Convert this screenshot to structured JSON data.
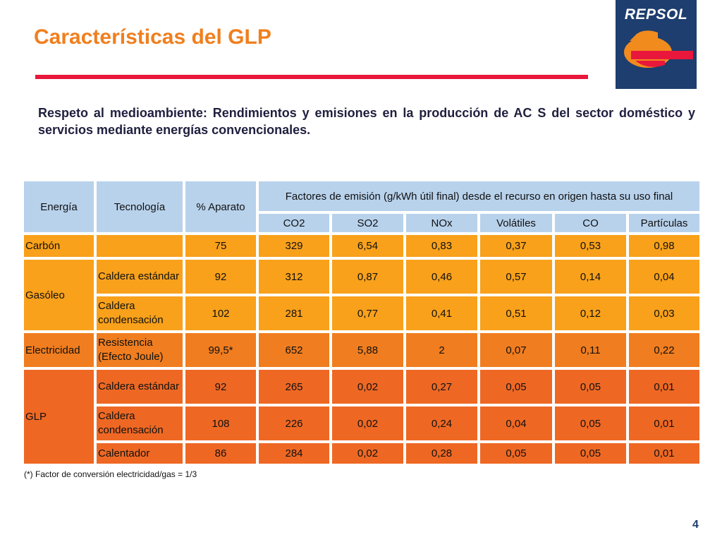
{
  "slide": {
    "title": "Características del GLP",
    "subtitle": "Respeto al medioambiente: Rendimientos y emisiones en la producción de AC S del sector doméstico y servicios mediante energías convencionales.",
    "footnote": "(*) Factor de conversión electricidad/gas = 1/3",
    "page_number": "4"
  },
  "logo": {
    "text": "REPSOL",
    "colors": {
      "background": "#1d3e6e",
      "orange": "#f28b1e",
      "red": "#e8173b"
    }
  },
  "colors": {
    "title": "#f07f1e",
    "rule": "#e8173b",
    "header": "#b8d2ec",
    "carbon": "#f9a11b",
    "gasoleo": "#f9a11b",
    "electricidad": "#f07d1f",
    "glp": "#ee6824"
  },
  "table": {
    "headers": {
      "energia": "Energía",
      "tecnologia": "Tecnología",
      "aparato": "% Aparato",
      "factores": "Factores de emisión (g/kWh útil final) desde el recurso en origen hasta su uso final",
      "emissions": [
        "CO2",
        "SO2",
        "NOx",
        "Volátiles",
        "CO",
        "Partículas"
      ]
    },
    "rows": [
      {
        "energia": "Carbón",
        "tecnologia": "",
        "aparato": "75",
        "values": [
          "329",
          "6,54",
          "0,83",
          "0,37",
          "0,53",
          "0,98"
        ]
      },
      {
        "energia": "Gasóleo",
        "tecnologia": "Caldera estándar",
        "aparato": "92",
        "values": [
          "312",
          "0,87",
          "0,46",
          "0,57",
          "0,14",
          "0,04"
        ]
      },
      {
        "energia": "",
        "tecnologia": "Caldera condensación",
        "aparato": "102",
        "values": [
          "281",
          "0,77",
          "0,41",
          "0,51",
          "0,12",
          "0,03"
        ]
      },
      {
        "energia": "Electricidad",
        "tecnologia": "Resistencia (Efecto Joule)",
        "aparato": "99,5*",
        "values": [
          "652",
          "5,88",
          "2",
          "0,07",
          "0,11",
          "0,22"
        ]
      },
      {
        "energia": "GLP",
        "tecnologia": "Caldera estándar",
        "aparato": "92",
        "values": [
          "265",
          "0,02",
          "0,27",
          "0,05",
          "0,05",
          "0,01"
        ]
      },
      {
        "energia": "",
        "tecnologia": "Caldera condensación",
        "aparato": "108",
        "values": [
          "226",
          "0,02",
          "0,24",
          "0,04",
          "0,05",
          "0,01"
        ]
      },
      {
        "energia": "",
        "tecnologia": "Calentador",
        "aparato": "86",
        "values": [
          "284",
          "0,02",
          "0,28",
          "0,05",
          "0,05",
          "0,01"
        ]
      }
    ]
  }
}
